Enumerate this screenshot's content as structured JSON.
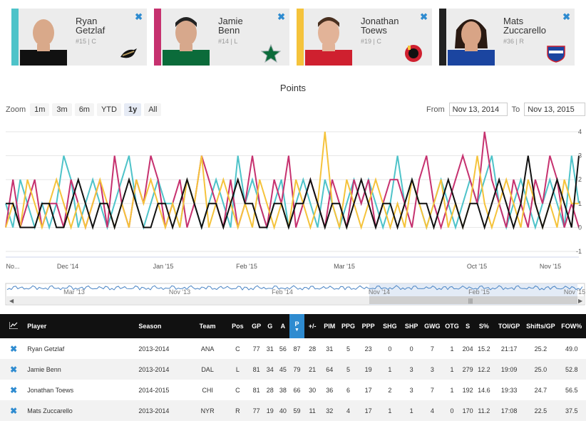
{
  "cards": [
    {
      "first": "Ryan",
      "last": "Getzlaf",
      "meta": "#15 | C",
      "color": "#4ec3c9",
      "team": "ANA",
      "jersey": "#111111",
      "logo_icon": "ducks-logo-icon"
    },
    {
      "first": "Jamie",
      "last": "Benn",
      "meta": "#14 | L",
      "color": "#c6316f",
      "team": "DAL",
      "jersey": "#0b6b3a",
      "logo_icon": "stars-logo-icon"
    },
    {
      "first": "Jonathan",
      "last": "Toews",
      "meta": "#19 | C",
      "color": "#f5c33b",
      "team": "CHI",
      "jersey": "#cf202f",
      "logo_icon": "blackhawks-logo-icon"
    },
    {
      "first": "Mats",
      "last": "Zuccarello",
      "meta": "#36 | R",
      "color": "#222222",
      "team": "NYR",
      "jersey": "#1b45a0",
      "logo_icon": "rangers-logo-icon"
    }
  ],
  "close_label": "✖",
  "chart": {
    "title": "Points",
    "zoom_label": "Zoom",
    "zoom_buttons": [
      "1m",
      "3m",
      "6m",
      "YTD",
      "1y",
      "All"
    ],
    "zoom_active": "1y",
    "from_label": "From",
    "from_value": "Nov 13, 2014",
    "to_label": "To",
    "to_value": "Nov 13, 2015"
  },
  "chart_data": {
    "type": "line",
    "title": "Points",
    "x_ticks": [
      "No...",
      "Dec '14",
      "Jan '15",
      "Feb '15",
      "Mar '15",
      "Oct '15",
      "Nov '15"
    ],
    "ylim": [
      -1,
      4
    ],
    "y_ticks": [
      4,
      3,
      2,
      1,
      0,
      -1
    ],
    "navigator_labels": [
      "Mar '13",
      "Nov '13",
      "Feb '14",
      "Nov '14",
      "Feb '15",
      "Nov '15"
    ],
    "series": [
      {
        "color": "#4ec3c9",
        "values": [
          1,
          0,
          2,
          1,
          0,
          1,
          0,
          1,
          3,
          2,
          0,
          1,
          2,
          1,
          0,
          1,
          2,
          3,
          1,
          0,
          1,
          2,
          1,
          1,
          0,
          2,
          1,
          0,
          1,
          2,
          1,
          0,
          3,
          1,
          2,
          1,
          0,
          1,
          2,
          0,
          1,
          2,
          1,
          0,
          2,
          1,
          0,
          1,
          2,
          1,
          2,
          1,
          0,
          1,
          3,
          1,
          2,
          1,
          0,
          1,
          2,
          1,
          0,
          1,
          2,
          1,
          2,
          3,
          1,
          0,
          1,
          2,
          1,
          0,
          1,
          2,
          1,
          0,
          3,
          1
        ]
      },
      {
        "color": "#c6316f",
        "values": [
          0,
          2,
          0,
          1,
          2,
          0,
          1,
          1,
          0,
          2,
          1,
          0,
          1,
          2,
          0,
          3,
          1,
          0,
          2,
          1,
          3,
          2,
          0,
          1,
          2,
          0,
          1,
          3,
          2,
          1,
          0,
          2,
          0,
          1,
          3,
          1,
          0,
          2,
          1,
          3,
          0,
          1,
          2,
          1,
          0,
          2,
          1,
          0,
          2,
          1,
          2,
          0,
          1,
          2,
          2,
          1,
          0,
          2,
          3,
          1,
          0,
          1,
          2,
          3,
          2,
          1,
          4,
          2,
          1,
          0,
          2,
          1,
          0,
          2,
          1,
          3,
          2,
          0,
          1,
          0
        ]
      },
      {
        "color": "#f5c33b",
        "values": [
          0,
          1,
          0,
          2,
          1,
          0,
          1,
          2,
          1,
          0,
          1,
          0,
          1,
          2,
          1,
          0,
          1,
          0,
          2,
          1,
          2,
          1,
          0,
          1,
          0,
          2,
          1,
          3,
          0,
          1,
          2,
          1,
          0,
          1,
          0,
          2,
          1,
          0,
          1,
          0,
          2,
          1,
          0,
          1,
          4,
          1,
          0,
          2,
          1,
          0,
          1,
          2,
          1,
          0,
          1,
          0,
          2,
          1,
          0,
          1,
          2,
          0,
          1,
          0,
          1,
          3,
          1,
          0,
          1,
          2,
          1,
          0,
          2,
          1,
          0,
          1,
          0,
          2,
          1,
          1
        ]
      },
      {
        "color": "#111111",
        "values": [
          1,
          1,
          0,
          0,
          0,
          1,
          1,
          0,
          0,
          1,
          2,
          1,
          0,
          1,
          1,
          0,
          1,
          2,
          1,
          0,
          0,
          1,
          1,
          0,
          1,
          2,
          1,
          0,
          1,
          1,
          0,
          1,
          2,
          1,
          1,
          0,
          0,
          1,
          1,
          0,
          1,
          1,
          2,
          1,
          0,
          1,
          1,
          0,
          1,
          2,
          1,
          0,
          1,
          1,
          0,
          1,
          2,
          1,
          1,
          0,
          1,
          2,
          1,
          0,
          1,
          1,
          0,
          1,
          2,
          1,
          0,
          1,
          3,
          1,
          0,
          1,
          2,
          1,
          0,
          3
        ]
      }
    ]
  },
  "table": {
    "headers": {
      "player": "Player",
      "season": "Season",
      "team": "Team",
      "pos": "Pos",
      "gp": "GP",
      "g": "G",
      "a": "A",
      "p": "P",
      "pm": "+/-",
      "pim": "PIM",
      "ppg": "PPG",
      "ppp": "PPP",
      "shg": "SHG",
      "shp": "SHP",
      "gwg": "GWG",
      "otg": "OTG",
      "s": "S",
      "spct": "S%",
      "toi": "TOI/GP",
      "shifts": "Shifts/GP",
      "fow": "FOW%"
    },
    "sort_arrow": "▼",
    "rows": [
      {
        "player": "Ryan Getzlaf",
        "season": "2013-2014",
        "team": "ANA",
        "pos": "C",
        "gp": "77",
        "g": "31",
        "a": "56",
        "p": "87",
        "pm": "28",
        "pim": "31",
        "ppg": "5",
        "ppp": "23",
        "shg": "0",
        "shp": "0",
        "gwg": "7",
        "otg": "1",
        "s": "204",
        "spct": "15.2",
        "toi": "21:17",
        "shifts": "25.2",
        "fow": "49.0"
      },
      {
        "player": "Jamie Benn",
        "season": "2013-2014",
        "team": "DAL",
        "pos": "L",
        "gp": "81",
        "g": "34",
        "a": "45",
        "p": "79",
        "pm": "21",
        "pim": "64",
        "ppg": "5",
        "ppp": "19",
        "shg": "1",
        "shp": "3",
        "gwg": "3",
        "otg": "1",
        "s": "279",
        "spct": "12.2",
        "toi": "19:09",
        "shifts": "25.0",
        "fow": "52.8"
      },
      {
        "player": "Jonathan Toews",
        "season": "2014-2015",
        "team": "CHI",
        "pos": "C",
        "gp": "81",
        "g": "28",
        "a": "38",
        "p": "66",
        "pm": "30",
        "pim": "36",
        "ppg": "6",
        "ppp": "17",
        "shg": "2",
        "shp": "3",
        "gwg": "7",
        "otg": "1",
        "s": "192",
        "spct": "14.6",
        "toi": "19:33",
        "shifts": "24.7",
        "fow": "56.5"
      },
      {
        "player": "Mats Zuccarello",
        "season": "2013-2014",
        "team": "NYR",
        "pos": "R",
        "gp": "77",
        "g": "19",
        "a": "40",
        "p": "59",
        "pm": "11",
        "pim": "32",
        "ppg": "4",
        "ppp": "17",
        "shg": "1",
        "shp": "1",
        "gwg": "4",
        "otg": "0",
        "s": "170",
        "spct": "11.2",
        "toi": "17:08",
        "shifts": "22.5",
        "fow": "37.5"
      }
    ]
  }
}
